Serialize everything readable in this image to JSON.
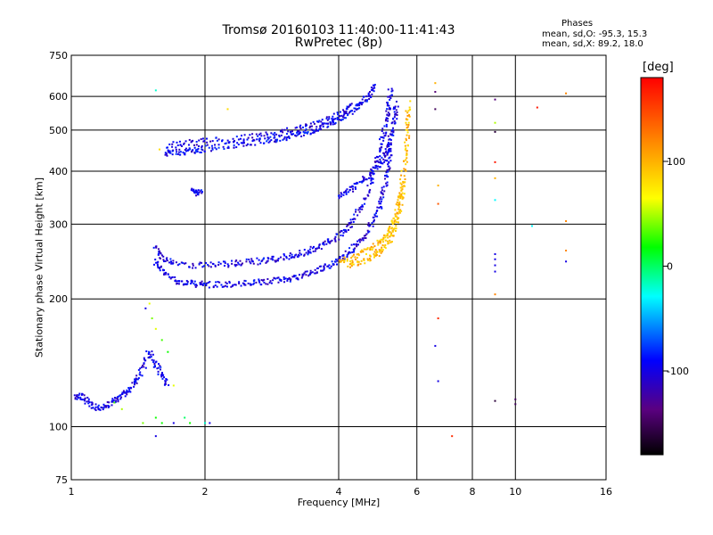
{
  "header": {
    "title_line1": "Tromsø 20160103 11:40:00-11:41:43",
    "title_line2": "RwPretec (8p)",
    "stats_heading": "Phases",
    "stats_line1": "mean, sd,O: -95.3, 15.3",
    "stats_line2": "mean, sd,X:  89.2, 18.0"
  },
  "colorbar": {
    "label": "[deg]",
    "range": [
      -180,
      180
    ],
    "ticks": [
      {
        "value": 100,
        "label": "100"
      },
      {
        "value": 0,
        "label": "0"
      },
      {
        "value": -100,
        "label": "-100"
      }
    ]
  },
  "chart_data": {
    "type": "scatter",
    "title": "Tromsø 20160103 11:40:00-11:41:43",
    "subtitle": "RwPretec (8p)",
    "xlabel": "Frequency [MHz]",
    "ylabel": "Stationary phase Virtual Height [km]",
    "x_scale": "log",
    "y_scale": "log",
    "xlim": [
      1,
      16
    ],
    "ylim": [
      75,
      750
    ],
    "x_ticks": [
      {
        "value": 1,
        "label": "1"
      },
      {
        "value": 2,
        "label": "2"
      },
      {
        "value": 4,
        "label": "4"
      },
      {
        "value": 6,
        "label": "6"
      },
      {
        "value": 8,
        "label": "8"
      },
      {
        "value": 10,
        "label": "10"
      },
      {
        "value": 16,
        "label": "16"
      }
    ],
    "y_ticks": [
      {
        "value": 75,
        "label": "75"
      },
      {
        "value": 100,
        "label": "100"
      },
      {
        "value": 200,
        "label": "200"
      },
      {
        "value": 300,
        "label": "300"
      },
      {
        "value": 400,
        "label": "400"
      },
      {
        "value": 500,
        "label": "500"
      },
      {
        "value": 600,
        "label": "600"
      },
      {
        "value": 750,
        "label": "750"
      }
    ],
    "grid": true,
    "color_encoding": "phase in degrees",
    "traces": [
      {
        "phase": -100,
        "points": [
          [
            1.54,
            246
          ],
          [
            1.6,
            232
          ],
          [
            1.7,
            222
          ],
          [
            1.8,
            218
          ],
          [
            1.9,
            217
          ],
          [
            2.0,
            216
          ],
          [
            2.2,
            216
          ],
          [
            2.4,
            217
          ],
          [
            2.6,
            218
          ],
          [
            2.8,
            220
          ],
          [
            3.0,
            222
          ],
          [
            3.2,
            225
          ],
          [
            3.4,
            229
          ],
          [
            3.6,
            234
          ],
          [
            3.8,
            240
          ],
          [
            4.0,
            247
          ],
          [
            4.2,
            256
          ],
          [
            4.4,
            268
          ],
          [
            4.6,
            283
          ],
          [
            4.8,
            305
          ],
          [
            4.95,
            330
          ],
          [
            5.05,
            360
          ],
          [
            5.15,
            400
          ],
          [
            5.2,
            430
          ],
          [
            5.25,
            470
          ]
        ]
      },
      {
        "phase": -100,
        "points": [
          [
            1.54,
            265
          ],
          [
            1.6,
            250
          ],
          [
            1.7,
            244
          ],
          [
            1.9,
            240
          ],
          [
            2.1,
            240
          ],
          [
            2.3,
            242
          ],
          [
            2.5,
            244
          ],
          [
            2.7,
            246
          ],
          [
            2.9,
            249
          ],
          [
            3.1,
            252
          ],
          [
            3.3,
            256
          ],
          [
            3.5,
            261
          ],
          [
            3.7,
            268
          ],
          [
            3.9,
            276
          ],
          [
            4.1,
            288
          ],
          [
            4.3,
            305
          ],
          [
            4.5,
            330
          ],
          [
            4.7,
            368
          ],
          [
            4.85,
            410
          ],
          [
            4.95,
            450
          ],
          [
            5.05,
            490
          ],
          [
            5.15,
            540
          ],
          [
            5.2,
            580
          ],
          [
            5.25,
            630
          ]
        ]
      },
      {
        "phase": -95,
        "points": [
          [
            1.62,
            440
          ],
          [
            1.7,
            442
          ],
          [
            1.8,
            445
          ],
          [
            1.9,
            448
          ],
          [
            2.0,
            452
          ],
          [
            2.2,
            458
          ],
          [
            2.4,
            463
          ],
          [
            2.6,
            468
          ],
          [
            2.8,
            474
          ],
          [
            3.0,
            480
          ],
          [
            3.2,
            487
          ],
          [
            3.4,
            495
          ],
          [
            3.6,
            505
          ],
          [
            3.8,
            518
          ],
          [
            4.0,
            532
          ],
          [
            4.2,
            548
          ],
          [
            4.4,
            566
          ],
          [
            4.55,
            585
          ],
          [
            4.7,
            610
          ],
          [
            4.8,
            640
          ]
        ]
      },
      {
        "phase": -100,
        "points": [
          [
            1.65,
            460
          ],
          [
            1.8,
            465
          ],
          [
            2.0,
            470
          ],
          [
            2.3,
            476
          ],
          [
            2.6,
            483
          ],
          [
            2.9,
            492
          ],
          [
            3.2,
            502
          ],
          [
            3.5,
            514
          ],
          [
            3.8,
            530
          ],
          [
            4.1,
            550
          ],
          [
            4.3,
            570
          ]
        ]
      },
      {
        "phase": -100,
        "points": [
          [
            4.0,
            350
          ],
          [
            4.2,
            360
          ],
          [
            4.4,
            372
          ],
          [
            4.6,
            385
          ],
          [
            4.8,
            400
          ],
          [
            5.0,
            420
          ],
          [
            5.1,
            440
          ],
          [
            5.2,
            470
          ],
          [
            5.3,
            500
          ],
          [
            5.35,
            540
          ],
          [
            5.4,
            580
          ]
        ]
      },
      {
        "phase": 95,
        "points": [
          [
            4.0,
            246
          ],
          [
            4.3,
            250
          ],
          [
            4.6,
            258
          ],
          [
            4.9,
            268
          ],
          [
            5.1,
            282
          ],
          [
            5.3,
            300
          ],
          [
            5.45,
            330
          ],
          [
            5.55,
            370
          ],
          [
            5.65,
            420
          ],
          [
            5.7,
            470
          ],
          [
            5.72,
            520
          ],
          [
            5.74,
            580
          ]
        ]
      },
      {
        "phase": 95,
        "points": [
          [
            4.2,
            238
          ],
          [
            4.5,
            243
          ],
          [
            4.8,
            252
          ],
          [
            5.0,
            262
          ],
          [
            5.2,
            275
          ],
          [
            5.35,
            292
          ],
          [
            5.45,
            315
          ],
          [
            5.55,
            345
          ],
          [
            5.6,
            380
          ]
        ]
      },
      {
        "phase": -100,
        "points": [
          [
            1.02,
            118
          ],
          [
            1.06,
            118
          ],
          [
            1.1,
            113
          ],
          [
            1.15,
            110
          ],
          [
            1.2,
            112
          ],
          [
            1.25,
            115
          ],
          [
            1.3,
            118
          ],
          [
            1.35,
            122
          ],
          [
            1.4,
            128
          ],
          [
            1.45,
            138
          ],
          [
            1.5,
            150
          ],
          [
            1.55,
            140
          ],
          [
            1.6,
            132
          ],
          [
            1.65,
            125
          ]
        ]
      },
      {
        "phase": -100,
        "points": [
          [
            1.88,
            358
          ],
          [
            1.92,
            356
          ],
          [
            1.96,
            355
          ]
        ]
      }
    ],
    "points": [
      {
        "x": 1.47,
        "y": 190,
        "phase": -100
      },
      {
        "x": 1.5,
        "y": 195,
        "phase": 60
      },
      {
        "x": 1.52,
        "y": 180,
        "phase": 40
      },
      {
        "x": 1.55,
        "y": 170,
        "phase": 60
      },
      {
        "x": 1.6,
        "y": 160,
        "phase": 30
      },
      {
        "x": 1.65,
        "y": 150,
        "phase": 20
      },
      {
        "x": 1.55,
        "y": 105,
        "phase": 20
      },
      {
        "x": 1.55,
        "y": 95,
        "phase": -100
      },
      {
        "x": 1.45,
        "y": 102,
        "phase": 40
      },
      {
        "x": 1.6,
        "y": 102,
        "phase": 20
      },
      {
        "x": 1.7,
        "y": 102,
        "phase": -100
      },
      {
        "x": 1.8,
        "y": 105,
        "phase": 0
      },
      {
        "x": 1.85,
        "y": 102,
        "phase": 20
      },
      {
        "x": 2.0,
        "y": 102,
        "phase": -20
      },
      {
        "x": 2.05,
        "y": 102,
        "phase": -100
      },
      {
        "x": 1.3,
        "y": 110,
        "phase": 50
      },
      {
        "x": 1.25,
        "y": 114,
        "phase": 30
      },
      {
        "x": 1.7,
        "y": 125,
        "phase": 60
      },
      {
        "x": 1.55,
        "y": 620,
        "phase": -20
      },
      {
        "x": 2.25,
        "y": 560,
        "phase": 80
      },
      {
        "x": 1.58,
        "y": 450,
        "phase": 80
      },
      {
        "x": 6.6,
        "y": 645,
        "phase": 100
      },
      {
        "x": 6.6,
        "y": 615,
        "phase": -140
      },
      {
        "x": 6.6,
        "y": 560,
        "phase": -150
      },
      {
        "x": 6.7,
        "y": 370,
        "phase": 100
      },
      {
        "x": 6.7,
        "y": 335,
        "phase": 140
      },
      {
        "x": 6.7,
        "y": 180,
        "phase": 160
      },
      {
        "x": 6.6,
        "y": 155,
        "phase": -100
      },
      {
        "x": 6.7,
        "y": 128,
        "phase": -100
      },
      {
        "x": 7.2,
        "y": 95,
        "phase": 160
      },
      {
        "x": 9.0,
        "y": 590,
        "phase": -140
      },
      {
        "x": 9.0,
        "y": 520,
        "phase": 50
      },
      {
        "x": 9.0,
        "y": 495,
        "phase": -160
      },
      {
        "x": 9.0,
        "y": 420,
        "phase": 170
      },
      {
        "x": 9.0,
        "y": 385,
        "phase": 100
      },
      {
        "x": 9.0,
        "y": 342,
        "phase": -30
      },
      {
        "x": 9.0,
        "y": 255,
        "phase": -100
      },
      {
        "x": 9.0,
        "y": 248,
        "phase": -100
      },
      {
        "x": 9.0,
        "y": 240,
        "phase": -100
      },
      {
        "x": 9.0,
        "y": 232,
        "phase": -100
      },
      {
        "x": 9.0,
        "y": 205,
        "phase": 120
      },
      {
        "x": 9.0,
        "y": 115,
        "phase": -160
      },
      {
        "x": 10.0,
        "y": 113,
        "phase": -150
      },
      {
        "x": 11.2,
        "y": 565,
        "phase": 170
      },
      {
        "x": 13.0,
        "y": 610,
        "phase": 120
      },
      {
        "x": 13.0,
        "y": 305,
        "phase": 120
      },
      {
        "x": 13.0,
        "y": 260,
        "phase": 120
      },
      {
        "x": 13.0,
        "y": 245,
        "phase": -100
      },
      {
        "x": 10.9,
        "y": 297,
        "phase": -30
      },
      {
        "x": 10.0,
        "y": 116,
        "phase": -150
      }
    ]
  }
}
